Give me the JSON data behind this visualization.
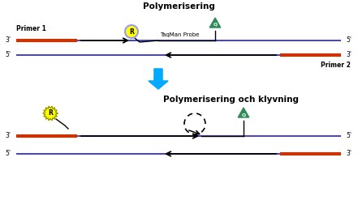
{
  "title1": "Polymerisering",
  "title2": "Polymerisering och klyvning",
  "blue_line_color": "#3333cc",
  "orange_color": "#cc3300",
  "taqman_label": "TaqMan Probe",
  "primer1_label": "Primer 1",
  "primer2_label": "Primer 2",
  "R_label": "R",
  "Q_label": "Q",
  "label_3prime": "3'",
  "label_5prime": "5'",
  "cyan_color": "#00aaff",
  "green_color": "#2e8b57",
  "yellow_color": "#ffff00",
  "purple_color": "#9999ff"
}
